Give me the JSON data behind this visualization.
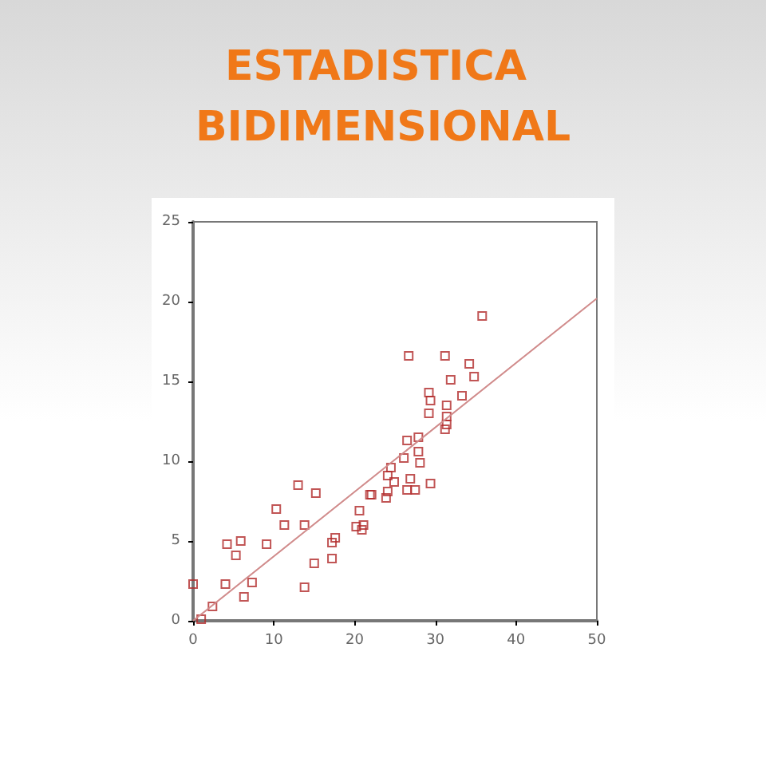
{
  "chart_data": {
    "type": "scatter",
    "title": "ESTADISTICA BIDIMENSIONAL",
    "series": [
      {
        "color": "#b22a2a",
        "x": [
          0,
          1,
          2.4,
          4.2,
          5.9,
          5.3,
          4,
          6.3,
          7.3,
          9.1,
          10.3,
          11.3,
          13,
          13.8,
          15.2,
          15,
          13.8,
          17.2,
          17.2,
          17.6,
          20.6,
          20.2,
          20.9,
          21.1,
          21.9,
          23.9,
          24.1,
          35.8,
          26.7,
          31.2,
          34.2,
          34.8,
          31.9,
          33.3,
          29.2,
          29.4,
          29.2,
          31.4,
          31.4,
          31.4,
          31.2,
          26.5,
          27.9,
          27.9,
          28.1,
          26.1,
          24.5,
          24.9,
          26.9,
          29.4,
          26.5,
          27.5,
          24.1,
          22.1
        ],
        "values": [
          2.3,
          0.1,
          0.9,
          4.8,
          5,
          4.1,
          2.3,
          1.5,
          2.4,
          4.8,
          7,
          6,
          8.5,
          6,
          8,
          3.6,
          2.1,
          3.9,
          4.9,
          5.2,
          6.9,
          5.9,
          5.7,
          6,
          7.9,
          7.7,
          9.1,
          19.1,
          16.6,
          16.6,
          16.1,
          15.3,
          15.1,
          14.1,
          14.3,
          13.8,
          13,
          13.5,
          12.8,
          12.3,
          12,
          11.3,
          11.5,
          10.6,
          9.9,
          10.2,
          9.6,
          8.7,
          8.9,
          8.6,
          8.2,
          8.2,
          8.1,
          7.9
        ]
      },
      {
        "type": "line",
        "color": "#d08a8a",
        "marker": "none",
        "x": [
          0,
          50
        ],
        "values": [
          0,
          20.2
        ]
      }
    ],
    "marker": "square",
    "xlim": [
      0,
      50
    ],
    "xticks": [
      0,
      10,
      20,
      30,
      40,
      50
    ],
    "ylim": [
      0,
      25
    ],
    "yticks": [
      0,
      5,
      10,
      15,
      20,
      25
    ],
    "grid": false
  }
}
